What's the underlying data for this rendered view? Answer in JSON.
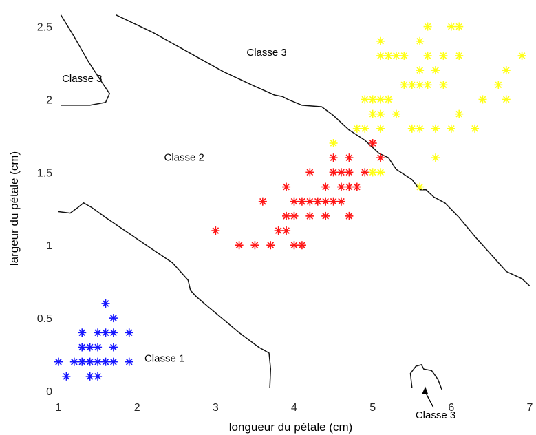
{
  "chart_data": {
    "type": "scatter",
    "title": "",
    "xlabel": "longueur du pétale (cm)",
    "ylabel": "largeur du pétale (cm)",
    "xlim": [
      1,
      7
    ],
    "ylim": [
      0,
      2.55
    ],
    "x_ticks": [
      1,
      2,
      3,
      4,
      5,
      6,
      7
    ],
    "y_ticks": [
      0,
      0.5,
      1,
      1.5,
      2,
      2.5
    ],
    "x_tick_labels": [
      "1",
      "2",
      "3",
      "4",
      "5",
      "6",
      "7"
    ],
    "y_tick_labels": [
      "0",
      "0.5",
      "1",
      "1.5",
      "2",
      "2.5"
    ],
    "marker": "asterisk",
    "grid": false,
    "series": [
      {
        "color": "#1515ff",
        "points": [
          [
            1.0,
            0.2
          ],
          [
            1.1,
            0.1
          ],
          [
            1.2,
            0.2
          ],
          [
            1.3,
            0.2
          ],
          [
            1.3,
            0.3
          ],
          [
            1.3,
            0.4
          ],
          [
            1.4,
            0.1
          ],
          [
            1.4,
            0.2
          ],
          [
            1.4,
            0.3
          ],
          [
            1.5,
            0.1
          ],
          [
            1.5,
            0.2
          ],
          [
            1.5,
            0.3
          ],
          [
            1.5,
            0.4
          ],
          [
            1.6,
            0.2
          ],
          [
            1.6,
            0.4
          ],
          [
            1.6,
            0.6
          ],
          [
            1.7,
            0.2
          ],
          [
            1.7,
            0.3
          ],
          [
            1.7,
            0.4
          ],
          [
            1.7,
            0.5
          ],
          [
            1.9,
            0.2
          ],
          [
            1.9,
            0.4
          ]
        ]
      },
      {
        "color": "#ff1515",
        "points": [
          [
            3.0,
            1.1
          ],
          [
            3.3,
            1.0
          ],
          [
            3.5,
            1.0
          ],
          [
            3.6,
            1.3
          ],
          [
            3.7,
            1.0
          ],
          [
            3.8,
            1.1
          ],
          [
            3.9,
            1.1
          ],
          [
            3.9,
            1.2
          ],
          [
            3.9,
            1.4
          ],
          [
            4.0,
            1.0
          ],
          [
            4.0,
            1.2
          ],
          [
            4.0,
            1.3
          ],
          [
            4.1,
            1.0
          ],
          [
            4.1,
            1.3
          ],
          [
            4.2,
            1.2
          ],
          [
            4.2,
            1.3
          ],
          [
            4.2,
            1.5
          ],
          [
            4.3,
            1.3
          ],
          [
            4.4,
            1.2
          ],
          [
            4.4,
            1.3
          ],
          [
            4.4,
            1.4
          ],
          [
            4.5,
            1.3
          ],
          [
            4.5,
            1.5
          ],
          [
            4.5,
            1.6
          ],
          [
            4.6,
            1.3
          ],
          [
            4.6,
            1.4
          ],
          [
            4.6,
            1.5
          ],
          [
            4.7,
            1.2
          ],
          [
            4.7,
            1.4
          ],
          [
            4.7,
            1.5
          ],
          [
            4.7,
            1.6
          ],
          [
            4.8,
            1.4
          ],
          [
            4.9,
            1.5
          ],
          [
            5.0,
            1.7
          ],
          [
            5.1,
            1.6
          ]
        ]
      },
      {
        "color": "#ffff14",
        "points": [
          [
            4.5,
            1.7
          ],
          [
            4.8,
            1.8
          ],
          [
            4.9,
            1.8
          ],
          [
            4.9,
            2.0
          ],
          [
            5.0,
            1.5
          ],
          [
            5.0,
            1.9
          ],
          [
            5.0,
            2.0
          ],
          [
            5.1,
            1.5
          ],
          [
            5.1,
            1.8
          ],
          [
            5.1,
            1.9
          ],
          [
            5.1,
            2.0
          ],
          [
            5.1,
            2.3
          ],
          [
            5.1,
            2.4
          ],
          [
            5.2,
            2.0
          ],
          [
            5.2,
            2.3
          ],
          [
            5.3,
            1.9
          ],
          [
            5.3,
            2.3
          ],
          [
            5.4,
            2.1
          ],
          [
            5.4,
            2.3
          ],
          [
            5.5,
            1.8
          ],
          [
            5.5,
            2.1
          ],
          [
            5.6,
            1.4
          ],
          [
            5.6,
            1.8
          ],
          [
            5.6,
            2.1
          ],
          [
            5.6,
            2.2
          ],
          [
            5.6,
            2.4
          ],
          [
            5.7,
            2.1
          ],
          [
            5.7,
            2.3
          ],
          [
            5.7,
            2.5
          ],
          [
            5.8,
            1.6
          ],
          [
            5.8,
            1.8
          ],
          [
            5.8,
            2.2
          ],
          [
            5.9,
            2.1
          ],
          [
            5.9,
            2.3
          ],
          [
            6.0,
            1.8
          ],
          [
            6.0,
            2.5
          ],
          [
            6.1,
            1.9
          ],
          [
            6.1,
            2.3
          ],
          [
            6.1,
            2.5
          ],
          [
            6.3,
            1.8
          ],
          [
            6.4,
            2.0
          ],
          [
            6.6,
            2.1
          ],
          [
            6.7,
            2.0
          ],
          [
            6.7,
            2.2
          ],
          [
            6.9,
            2.3
          ]
        ]
      }
    ],
    "boundaries": [
      {
        "points": [
          [
            1.0,
            1.23
          ],
          [
            1.15,
            1.22
          ],
          [
            1.25,
            1.26
          ],
          [
            1.32,
            1.29
          ],
          [
            1.42,
            1.26
          ],
          [
            1.6,
            1.19
          ],
          [
            1.9,
            1.08
          ],
          [
            2.2,
            0.97
          ],
          [
            2.45,
            0.88
          ],
          [
            2.65,
            0.76
          ],
          [
            2.68,
            0.69
          ],
          [
            2.75,
            0.65
          ],
          [
            2.9,
            0.58
          ],
          [
            3.1,
            0.49
          ],
          [
            3.3,
            0.4
          ],
          [
            3.55,
            0.3
          ],
          [
            3.68,
            0.26
          ],
          [
            3.7,
            0.15
          ],
          [
            3.69,
            0.02
          ]
        ]
      },
      {
        "points": [
          [
            1.73,
            2.58
          ],
          [
            2.2,
            2.46
          ],
          [
            2.7,
            2.31
          ],
          [
            3.1,
            2.19
          ],
          [
            3.5,
            2.09
          ],
          [
            3.75,
            2.03
          ],
          [
            3.85,
            2.02
          ],
          [
            3.92,
            2.0
          ],
          [
            4.1,
            1.96
          ],
          [
            4.35,
            1.95
          ],
          [
            4.5,
            1.89
          ],
          [
            4.7,
            1.79
          ],
          [
            4.9,
            1.72
          ],
          [
            5.08,
            1.63
          ],
          [
            5.2,
            1.6
          ],
          [
            5.3,
            1.52
          ],
          [
            5.5,
            1.45
          ],
          [
            5.6,
            1.38
          ],
          [
            5.68,
            1.38
          ],
          [
            5.78,
            1.33
          ],
          [
            5.92,
            1.29
          ],
          [
            6.1,
            1.19
          ],
          [
            6.3,
            1.06
          ],
          [
            6.5,
            0.94
          ],
          [
            6.7,
            0.82
          ],
          [
            6.9,
            0.77
          ],
          [
            7.0,
            0.72
          ]
        ]
      },
      {
        "points": [
          [
            1.03,
            2.58
          ],
          [
            1.2,
            2.43
          ],
          [
            1.38,
            2.26
          ],
          [
            1.55,
            2.12
          ],
          [
            1.65,
            2.04
          ],
          [
            1.6,
            1.98
          ],
          [
            1.4,
            1.96
          ],
          [
            1.2,
            1.96
          ],
          [
            1.03,
            1.96
          ]
        ]
      },
      {
        "points": [
          [
            5.5,
            0.02
          ],
          [
            5.48,
            0.12
          ],
          [
            5.55,
            0.17
          ],
          [
            5.62,
            0.18
          ],
          [
            5.65,
            0.15
          ],
          [
            5.75,
            0.14
          ],
          [
            5.83,
            0.08
          ],
          [
            5.88,
            0.01
          ]
        ]
      }
    ],
    "annotations": [
      {
        "text": "Classe 3",
        "x": 3.65,
        "y": 2.3
      },
      {
        "text": "Classe 3",
        "x": 1.3,
        "y": 2.12
      },
      {
        "text": "Classe 2",
        "x": 2.6,
        "y": 1.58
      },
      {
        "text": "Classe 1",
        "x": 2.35,
        "y": 0.2
      },
      {
        "text": "Classe 3",
        "x": 5.8,
        "y": -0.19,
        "arrow_to": [
          5.67,
          0.03
        ]
      }
    ]
  }
}
